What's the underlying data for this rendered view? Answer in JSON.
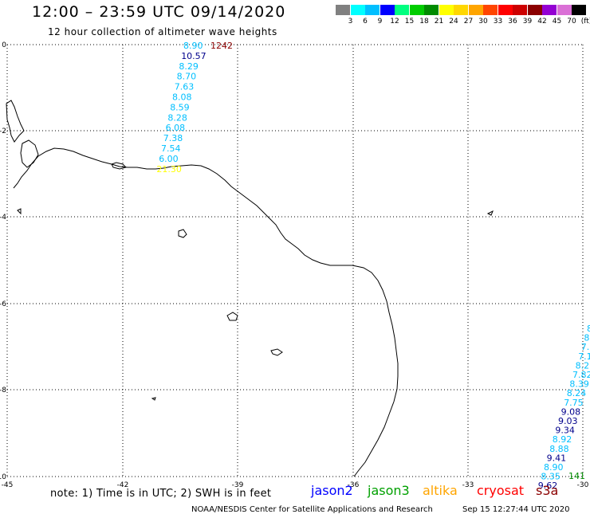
{
  "title": "12:00 – 23:59 UTC 09/14/2020",
  "subtitle": "12 hour collection of altimeter wave heights",
  "legend": {
    "unit": "(ft)",
    "items": [
      {
        "label": "",
        "color": "#808080"
      },
      {
        "label": "3",
        "color": "#00ffff"
      },
      {
        "label": "6",
        "color": "#00bfff"
      },
      {
        "label": "9",
        "color": "#0000ff"
      },
      {
        "label": "12",
        "color": "#00ff7f"
      },
      {
        "label": "15",
        "color": "#00cd00"
      },
      {
        "label": "18",
        "color": "#008b00"
      },
      {
        "label": "21",
        "color": "#ffff00"
      },
      {
        "label": "24",
        "color": "#ffd700"
      },
      {
        "label": "27",
        "color": "#ffa500"
      },
      {
        "label": "30",
        "color": "#ff4500"
      },
      {
        "label": "33",
        "color": "#ff0000"
      },
      {
        "label": "36",
        "color": "#cd0000"
      },
      {
        "label": "39",
        "color": "#8b0000"
      },
      {
        "label": "42",
        "color": "#9400d3"
      },
      {
        "label": "45",
        "color": "#da70d6"
      },
      {
        "label": "70",
        "color": "#000000"
      }
    ]
  },
  "axes": {
    "lon_ticks": [
      "-45",
      "-42",
      "-39",
      "-36",
      "-33",
      "-30"
    ],
    "lat_ticks": [
      "0",
      "-2",
      "-4",
      "-6",
      "-8",
      "-10"
    ]
  },
  "track_labels": {
    "left_track": [
      {
        "text": "8.90",
        "color": "#00bfff"
      },
      {
        "text": "10.57",
        "color": "#00008b"
      },
      {
        "text": "8.29",
        "color": "#00bfff"
      },
      {
        "text": "8.70",
        "color": "#00bfff"
      },
      {
        "text": "7.63",
        "color": "#00bfff"
      },
      {
        "text": "8.08",
        "color": "#00bfff"
      },
      {
        "text": "8.59",
        "color": "#00bfff"
      },
      {
        "text": "8.28",
        "color": "#00bfff"
      },
      {
        "text": "6.08",
        "color": "#00bfff"
      },
      {
        "text": "7.38",
        "color": "#00bfff"
      },
      {
        "text": "7.54",
        "color": "#00bfff"
      },
      {
        "text": "6.00",
        "color": "#00bfff"
      },
      {
        "text": "21.30",
        "color": "#ffff00"
      }
    ],
    "left_extra": {
      "text": "1242",
      "color": "#8b0000"
    },
    "right_track": [
      {
        "text": "8",
        "color": "#00bfff"
      },
      {
        "text": "8",
        "color": "#00bfff"
      },
      {
        "text": "7.1",
        "color": "#00bfff"
      },
      {
        "text": "7.1",
        "color": "#00bfff"
      },
      {
        "text": "8.2",
        "color": "#00bfff"
      },
      {
        "text": "7.82",
        "color": "#00bfff"
      },
      {
        "text": "8.39",
        "color": "#00bfff"
      },
      {
        "text": "8.24",
        "color": "#00bfff"
      },
      {
        "text": "7.75",
        "color": "#00bfff"
      },
      {
        "text": "9.08",
        "color": "#00008b"
      },
      {
        "text": "9.03",
        "color": "#00008b"
      },
      {
        "text": "9.34",
        "color": "#00008b"
      },
      {
        "text": "8.92",
        "color": "#00bfff"
      },
      {
        "text": "8.88",
        "color": "#00bfff"
      },
      {
        "text": "9.41",
        "color": "#00008b"
      },
      {
        "text": "8.90",
        "color": "#00bfff"
      },
      {
        "text": "8.35",
        "color": "#00bfff"
      },
      {
        "text": "9.62",
        "color": "#00008b"
      }
    ],
    "right_extra": {
      "text": "141",
      "color": "#008b00"
    }
  },
  "note": "note: 1) Time is in UTC; 2) SWH is in feet",
  "satellites": [
    {
      "name": "jason2",
      "color": "#0000ff"
    },
    {
      "name": "jason3",
      "color": "#00a000"
    },
    {
      "name": "altika",
      "color": "#ffa500"
    },
    {
      "name": "cryosat",
      "color": "#ff0000"
    },
    {
      "name": "s3a",
      "color": "#8b0000"
    }
  ],
  "footer": "NOAA/NESDIS Center for Satellite Applications and Research",
  "footer_timestamp": "Sep 15 12:27:44 UTC 2020"
}
